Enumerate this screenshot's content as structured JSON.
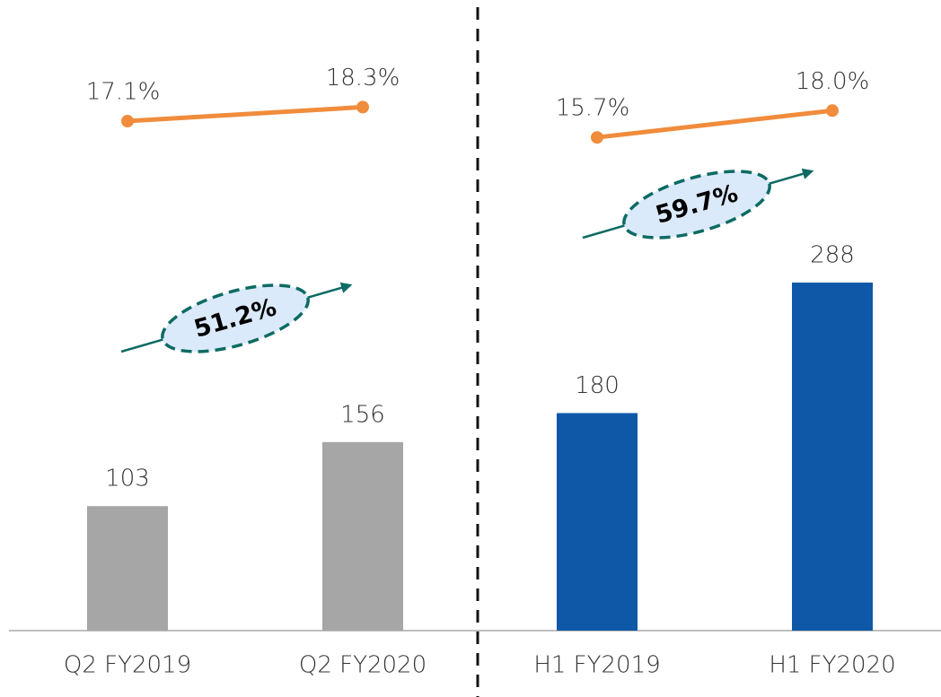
{
  "chart_data": [
    {
      "type": "bar",
      "categories": [
        "Q2 FY2019",
        "Q2 FY2020"
      ],
      "values": [
        103,
        156
      ],
      "color": "#a6a6a6",
      "line_values": [
        17.1,
        18.3
      ],
      "line_value_labels": [
        "17.1%",
        "18.3%"
      ],
      "line_color": "#f08c3c",
      "annotation": "51.2%"
    },
    {
      "type": "bar",
      "categories": [
        "H1 FY2019",
        "H1 FY2020"
      ],
      "values": [
        180,
        288
      ],
      "color": "#0f58a8",
      "line_values": [
        15.7,
        18.0
      ],
      "line_value_labels": [
        "15.7%",
        "18.0%"
      ],
      "line_color": "#f08c3c",
      "annotation": "59.7%"
    }
  ]
}
